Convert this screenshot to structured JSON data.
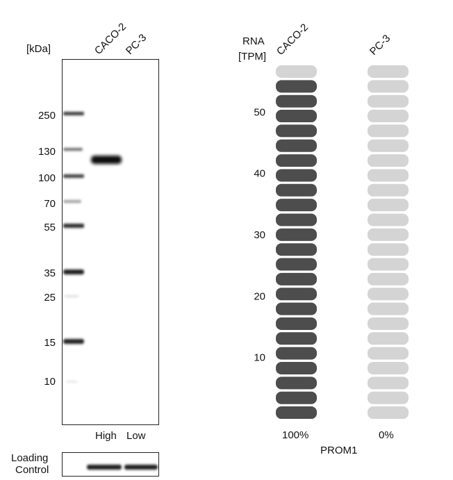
{
  "western_blot": {
    "unit_label": "[kDa]",
    "lanes": [
      "CACO-2",
      "PC-3"
    ],
    "markers": [
      "250",
      "130",
      "100",
      "70",
      "55",
      "35",
      "25",
      "15",
      "10"
    ],
    "expression_labels": [
      "High",
      "Low"
    ],
    "loading_control_line1": "Loading",
    "loading_control_line2": "Control"
  },
  "chart_data": {
    "type": "bar",
    "title": "",
    "ylabel_line1": "RNA",
    "ylabel_line2": "[TPM]",
    "xlabel": "PROM1",
    "categories": [
      "CACO-2",
      "PC-3"
    ],
    "series": [
      {
        "values": [
          57,
          0
        ]
      }
    ],
    "percent_labels": [
      "100%",
      "0%"
    ],
    "yticks": [
      "10",
      "20",
      "30",
      "40",
      "50"
    ],
    "ylim": [
      0,
      58
    ],
    "segments_total": 24,
    "segments_filled": [
      23,
      0
    ],
    "colors": {
      "filled": "#4d4d4d",
      "empty": "#d4d4d4"
    }
  }
}
